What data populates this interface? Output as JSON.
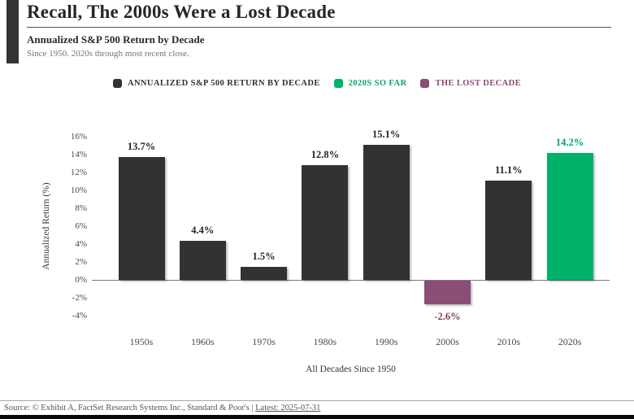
{
  "header": {
    "title": "Recall, The 2000s Were a Lost Decade",
    "subtitle": "Annualized S&P 500 Return by Decade",
    "tagline": "Since 1950. 2020s through most recent close."
  },
  "legend": [
    {
      "label": "ANNUALIZED S&P 500 RETURN BY DECADE",
      "color": "#323232",
      "text_color": "#323232"
    },
    {
      "label": "2020S SO FAR",
      "color": "#00b269",
      "text_color": "#00a765"
    },
    {
      "label": "THE LOST DECADE",
      "color": "#8a4d74",
      "text_color": "#8a4a72"
    }
  ],
  "chart_data": {
    "type": "bar",
    "title": "Annualized S&P 500 Return by Decade",
    "categories": [
      "1950s",
      "1960s",
      "1970s",
      "1980s",
      "1990s",
      "2000s",
      "2010s",
      "2020s"
    ],
    "values": [
      13.7,
      4.4,
      1.5,
      12.8,
      15.1,
      -2.6,
      11.1,
      14.2
    ],
    "value_labels": [
      "13.7%",
      "4.4%",
      "1.5%",
      "12.8%",
      "15.1%",
      "-2.6%",
      "11.1%",
      "14.2%"
    ],
    "bar_colors": [
      "#323232",
      "#323232",
      "#323232",
      "#323232",
      "#323232",
      "#8a4d74",
      "#323232",
      "#00b269"
    ],
    "value_label_colors": [
      "#242424",
      "#242424",
      "#242424",
      "#242424",
      "#242424",
      "#7e4165",
      "#242424",
      "#00a765"
    ],
    "xlabel": "All Decades Since 1950",
    "ylabel": "Annualized Return (%)",
    "ylim": [
      -4,
      16
    ],
    "yticks": [
      "16%",
      "14%",
      "12%",
      "10%",
      "8%",
      "6%",
      "4%",
      "2%",
      "0%",
      "-2%",
      "-4%"
    ],
    "ytick_values": [
      16,
      14,
      12,
      10,
      8,
      6,
      4,
      2,
      0,
      -2,
      -4
    ],
    "grid": false,
    "legend_position": "top",
    "series_names": [
      "ANNUALIZED S&P 500 RETURN BY DECADE",
      "2020S SO FAR",
      "THE LOST DECADE"
    ]
  },
  "footer": {
    "source_prefix": "Source: © Exhibit A, FactSet Research Systems Inc., Standard & Poor's | ",
    "latest_link": "Latest: 2025-07-31"
  },
  "colors": {
    "dark_bar": "#323232",
    "green_bar": "#00b269",
    "purple_bar": "#8a4d74",
    "title_rule": "#46536b",
    "accent_bar": "#333333"
  }
}
